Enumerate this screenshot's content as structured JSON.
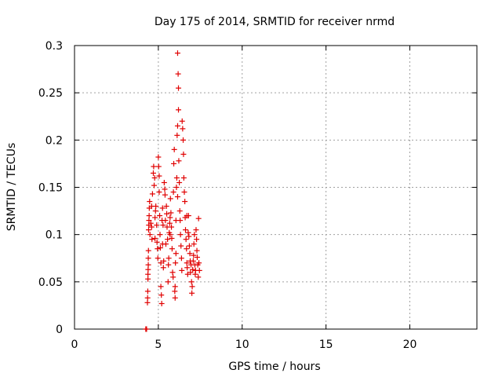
{
  "chart_data": {
    "type": "scatter",
    "title": "Day 175 of 2014, SRMTID for receiver nrmd",
    "xlabel": "GPS time / hours",
    "ylabel": "SRMTID / TECUs",
    "xlim": [
      0,
      24
    ],
    "ylim": [
      0,
      0.3
    ],
    "xticks": [
      0,
      5,
      10,
      15,
      20
    ],
    "xtick_labels": [
      "0",
      "5",
      "10",
      "15",
      "20"
    ],
    "yticks": [
      0,
      0.05,
      0.1,
      0.15,
      0.2,
      0.25,
      0.3
    ],
    "ytick_labels": [
      "0",
      "0.05",
      "0.1",
      "0.15",
      "0.2",
      "0.25",
      "0.3"
    ],
    "grid": true,
    "marker": "+",
    "color": "#e00000",
    "series": [
      {
        "name": "SRMTID",
        "points": [
          [
            4.25,
            0.0
          ],
          [
            4.3,
            0.0
          ],
          [
            4.35,
            0.028
          ],
          [
            4.36,
            0.033
          ],
          [
            4.37,
            0.04
          ],
          [
            4.38,
            0.053
          ],
          [
            4.38,
            0.058
          ],
          [
            4.39,
            0.063
          ],
          [
            4.4,
            0.068
          ],
          [
            4.4,
            0.075
          ],
          [
            4.41,
            0.083
          ],
          [
            4.42,
            0.105
          ],
          [
            4.43,
            0.11
          ],
          [
            4.44,
            0.115
          ],
          [
            4.45,
            0.12
          ],
          [
            4.46,
            0.128
          ],
          [
            4.48,
            0.135
          ],
          [
            4.5,
            0.1
          ],
          [
            4.55,
            0.112
          ],
          [
            4.6,
            0.108
          ],
          [
            4.62,
            0.095
          ],
          [
            4.65,
            0.143
          ],
          [
            4.7,
            0.165
          ],
          [
            4.72,
            0.172
          ],
          [
            4.75,
            0.152
          ],
          [
            4.78,
            0.16
          ],
          [
            4.8,
            0.118
          ],
          [
            4.83,
            0.125
          ],
          [
            4.85,
            0.13
          ],
          [
            4.9,
            0.11
          ],
          [
            4.92,
            0.092
          ],
          [
            4.95,
            0.085
          ],
          [
            4.97,
            0.075
          ],
          [
            5.0,
            0.182
          ],
          [
            5.02,
            0.172
          ],
          [
            5.05,
            0.162
          ],
          [
            5.05,
            0.145
          ],
          [
            5.08,
            0.12
          ],
          [
            5.1,
            0.1
          ],
          [
            5.12,
            0.086
          ],
          [
            5.15,
            0.07
          ],
          [
            5.15,
            0.045
          ],
          [
            5.18,
            0.036
          ],
          [
            5.2,
            0.027
          ],
          [
            5.22,
            0.115
          ],
          [
            5.25,
            0.128
          ],
          [
            5.28,
            0.11
          ],
          [
            5.3,
            0.065
          ],
          [
            5.32,
            0.072
          ],
          [
            5.35,
            0.155
          ],
          [
            5.38,
            0.148
          ],
          [
            5.4,
            0.142
          ],
          [
            5.42,
            0.115
          ],
          [
            5.45,
            0.09
          ],
          [
            5.48,
            0.13
          ],
          [
            5.5,
            0.122
          ],
          [
            5.52,
            0.108
          ],
          [
            5.55,
            0.095
          ],
          [
            5.58,
            0.05
          ],
          [
            5.6,
            0.068
          ],
          [
            5.62,
            0.075
          ],
          [
            5.65,
            0.102
          ],
          [
            5.68,
            0.112
          ],
          [
            5.7,
            0.118
          ],
          [
            5.72,
            0.138
          ],
          [
            5.75,
            0.123
          ],
          [
            5.78,
            0.108
          ],
          [
            5.8,
            0.096
          ],
          [
            5.82,
            0.085
          ],
          [
            5.85,
            0.06
          ],
          [
            5.88,
            0.055
          ],
          [
            5.9,
            0.145
          ],
          [
            5.92,
            0.175
          ],
          [
            5.95,
            0.19
          ],
          [
            5.98,
            0.04
          ],
          [
            6.0,
            0.033
          ],
          [
            6.0,
            0.045
          ],
          [
            6.02,
            0.07
          ],
          [
            6.05,
            0.08
          ],
          [
            6.05,
            0.115
          ],
          [
            6.08,
            0.15
          ],
          [
            6.1,
            0.16
          ],
          [
            6.12,
            0.205
          ],
          [
            6.15,
            0.215
          ],
          [
            6.15,
            0.292
          ],
          [
            6.18,
            0.27
          ],
          [
            6.2,
            0.255
          ],
          [
            6.2,
            0.232
          ],
          [
            6.22,
            0.178
          ],
          [
            6.25,
            0.155
          ],
          [
            6.28,
            0.125
          ],
          [
            6.3,
            0.115
          ],
          [
            6.32,
            0.1
          ],
          [
            6.35,
            0.088
          ],
          [
            6.38,
            0.075
          ],
          [
            6.4,
            0.062
          ],
          [
            6.42,
            0.22
          ],
          [
            6.45,
            0.212
          ],
          [
            6.48,
            0.2
          ],
          [
            6.5,
            0.185
          ],
          [
            6.52,
            0.16
          ],
          [
            6.55,
            0.145
          ],
          [
            6.58,
            0.135
          ],
          [
            6.6,
            0.118
          ],
          [
            6.62,
            0.105
          ],
          [
            6.65,
            0.095
          ],
          [
            6.68,
            0.085
          ],
          [
            6.7,
            0.07
          ],
          [
            6.72,
            0.065
          ],
          [
            6.75,
            0.058
          ],
          [
            6.78,
            0.102
          ],
          [
            6.8,
            0.12
          ],
          [
            6.82,
            0.098
          ],
          [
            6.85,
            0.088
          ],
          [
            6.88,
            0.08
          ],
          [
            6.9,
            0.072
          ],
          [
            6.92,
            0.06
          ],
          [
            6.95,
            0.068
          ],
          [
            6.98,
            0.05
          ],
          [
            7.0,
            0.038
          ],
          [
            7.02,
            0.045
          ],
          [
            7.05,
            0.063
          ],
          [
            7.08,
            0.072
          ],
          [
            7.1,
            0.078
          ],
          [
            7.12,
            0.09
          ],
          [
            7.15,
            0.1
          ],
          [
            7.18,
            0.068
          ],
          [
            7.2,
            0.058
          ],
          [
            7.22,
            0.062
          ],
          [
            7.25,
            0.105
          ],
          [
            7.28,
            0.095
          ],
          [
            7.3,
            0.083
          ],
          [
            7.32,
            0.076
          ],
          [
            7.35,
            0.068
          ],
          [
            7.38,
            0.055
          ],
          [
            7.4,
            0.117
          ],
          [
            7.42,
            0.07
          ],
          [
            7.45,
            0.062
          ],
          [
            4.6,
            0.13
          ],
          [
            4.8,
            0.096
          ],
          [
            5.25,
            0.09
          ],
          [
            5.7,
            0.1
          ],
          [
            6.15,
            0.14
          ],
          [
            6.7,
            0.12
          ]
        ]
      }
    ]
  }
}
